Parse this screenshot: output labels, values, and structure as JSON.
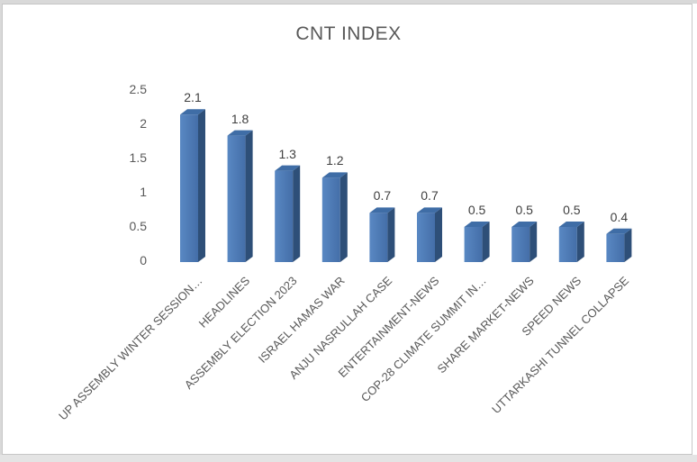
{
  "chart_data": {
    "type": "bar",
    "subtype": "3d-clustered-column",
    "title": "CNT INDEX",
    "categories": [
      "UP ASSEMBLY WINTER SESSION…",
      "HEADLINES",
      "ASSEMBLY ELECTION 2023",
      "ISRAEL HAMAS WAR",
      "ANJU NASRULLAH CASE",
      "ENTERTAINMENT-NEWS",
      "COP-28 CLIMATE SUMMIT IN…",
      "SHARE MARKET-NEWS",
      "SPEED NEWS",
      "UTTARKASHI TUNNEL COLLAPSE"
    ],
    "values": [
      2.1,
      1.8,
      1.3,
      1.2,
      0.7,
      0.7,
      0.5,
      0.5,
      0.5,
      0.4
    ],
    "value_labels": [
      "2.1",
      "1.8",
      "1.3",
      "1.2",
      "0.7",
      "0.7",
      "0.5",
      "0.5",
      "0.5",
      "0.4"
    ],
    "yticks": [
      2.5,
      2,
      1.5,
      1,
      0.5,
      0
    ],
    "ytick_labels": [
      "2.5",
      "2",
      "1.5",
      "1",
      "0.5",
      "0"
    ],
    "ylim": [
      0,
      2.5
    ],
    "xlabel": "",
    "ylabel": "",
    "grid": false,
    "legend": false,
    "colors": {
      "bar_front_light": "#5988c3",
      "bar_front_dark": "#446ea8",
      "bar_top": "#3f6da6",
      "bar_side": "#2e4f78",
      "title_text": "#595959",
      "axis_text": "#595959",
      "value_text": "#3f3f3f",
      "frame_border": "#c6c6c6",
      "background": "#ffffff"
    }
  }
}
